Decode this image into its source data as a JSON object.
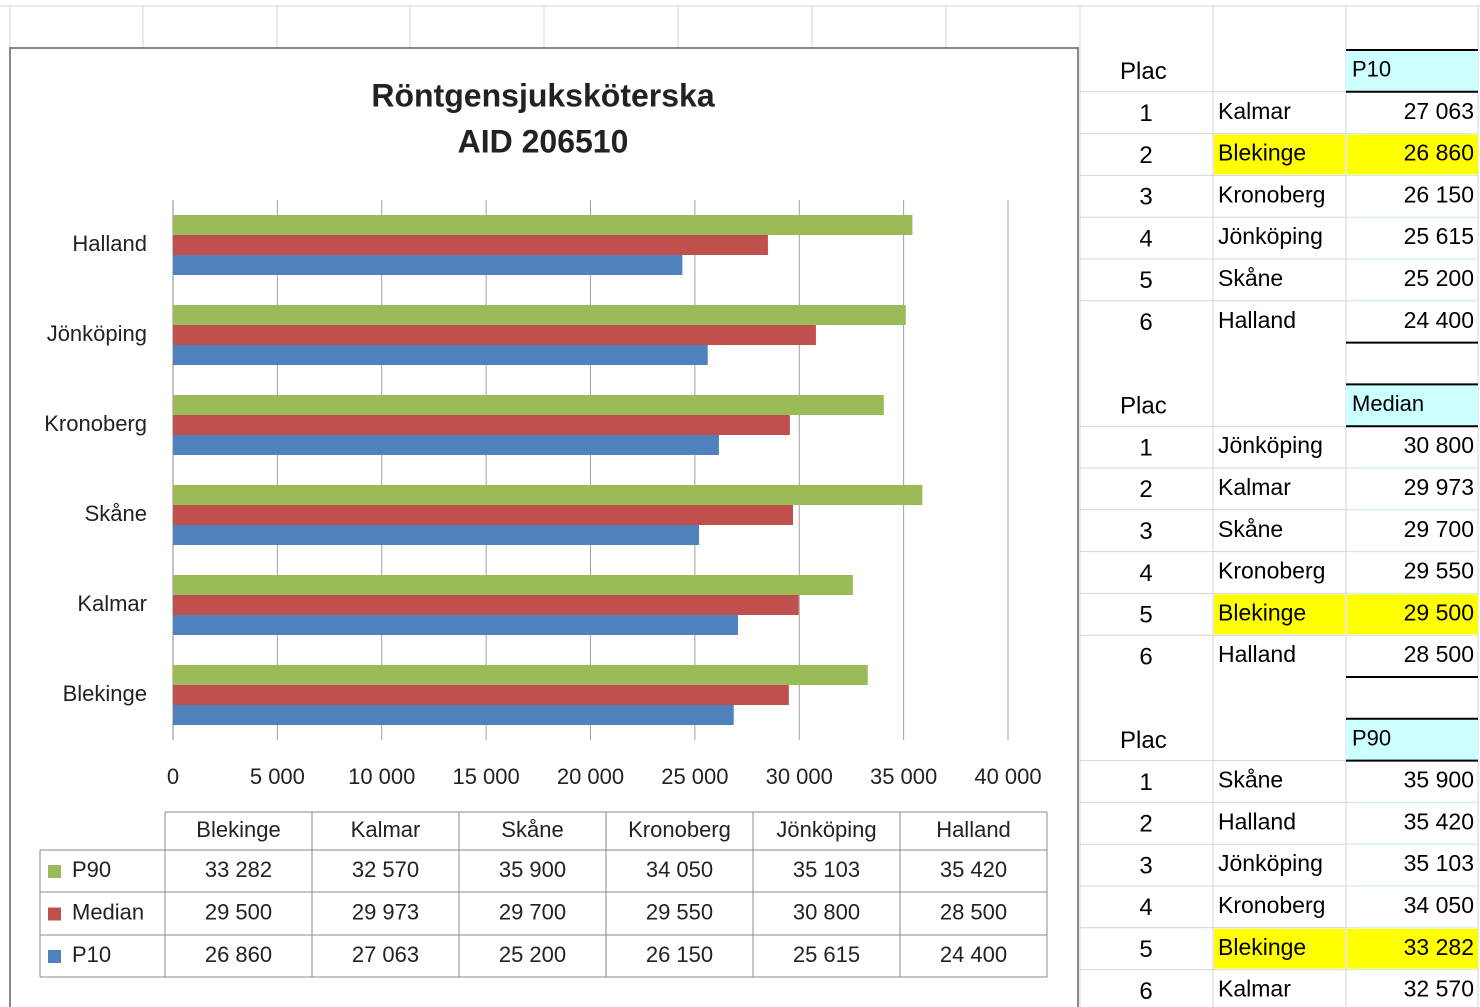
{
  "chart_data": {
    "type": "bar",
    "orientation": "horizontal",
    "title": "Röntgensjuksköterska",
    "subtitle": "AID 206510",
    "categories": [
      "Blekinge",
      "Kalmar",
      "Skåne",
      "Kronoberg",
      "Jönköping",
      "Halland"
    ],
    "series": [
      {
        "name": "P90",
        "color": "#9bbb59",
        "values": [
          33282,
          32570,
          35900,
          34050,
          35103,
          35420
        ],
        "value_labels": [
          "33 282",
          "32 570",
          "35 900",
          "34 050",
          "35 103",
          "35 420"
        ]
      },
      {
        "name": "Median",
        "color": "#c0504d",
        "values": [
          29500,
          29973,
          29700,
          29550,
          30800,
          28500
        ],
        "value_labels": [
          "29 500",
          "29 973",
          "29 700",
          "29 550",
          "30 800",
          "28 500"
        ]
      },
      {
        "name": "P10",
        "color": "#4f81bd",
        "values": [
          26860,
          27063,
          25200,
          26150,
          25615,
          24400
        ],
        "value_labels": [
          "26 860",
          "27 063",
          "25 200",
          "26 150",
          "25 615",
          "24 400"
        ]
      }
    ],
    "xlim": [
      0,
      40000
    ],
    "xticks": [
      0,
      {
        "value": 5000,
        "label": "5 000"
      },
      {
        "value": 10000,
        "label": "10 000"
      },
      {
        "value": 15000,
        "label": "15 000"
      },
      {
        "value": 20000,
        "label": "20 000"
      },
      {
        "value": 25000,
        "label": "25 000"
      },
      {
        "value": 30000,
        "label": "30 000"
      },
      {
        "value": 35000,
        "label": "35 000"
      },
      {
        "value": 40000,
        "label": "40 000"
      }
    ],
    "grid": true,
    "data_table": true
  },
  "rankings": [
    {
      "plac": "Plac",
      "header": "P10",
      "rows": [
        {
          "rank": 1,
          "name": "Kalmar",
          "value": 27063,
          "value_label": "27 063"
        },
        {
          "rank": 2,
          "name": "Blekinge",
          "value": 26860,
          "value_label": "26 860",
          "highlighted": true
        },
        {
          "rank": 3,
          "name": "Kronoberg",
          "value": 26150,
          "value_label": "26 150"
        },
        {
          "rank": 4,
          "name": "Jönköping",
          "value": 25615,
          "value_label": "25 615"
        },
        {
          "rank": 5,
          "name": "Skåne",
          "value": 25200,
          "value_label": "25 200"
        },
        {
          "rank": 6,
          "name": "Halland",
          "value": 24400,
          "value_label": "24 400"
        }
      ]
    },
    {
      "plac": "Plac",
      "header": "Median",
      "rows": [
        {
          "rank": 1,
          "name": "Jönköping",
          "value": 30800,
          "value_label": "30 800"
        },
        {
          "rank": 2,
          "name": "Kalmar",
          "value": 29973,
          "value_label": "29 973"
        },
        {
          "rank": 3,
          "name": "Skåne",
          "value": 29700,
          "value_label": "29 700"
        },
        {
          "rank": 4,
          "name": "Kronoberg",
          "value": 29550,
          "value_label": "29 550"
        },
        {
          "rank": 5,
          "name": "Blekinge",
          "value": 29500,
          "value_label": "29 500",
          "highlighted": true
        },
        {
          "rank": 6,
          "name": "Halland",
          "value": 28500,
          "value_label": "28 500"
        }
      ]
    },
    {
      "plac": "Plac",
      "header": "P90",
      "rows": [
        {
          "rank": 1,
          "name": "Skåne",
          "value": 35900,
          "value_label": "35 900"
        },
        {
          "rank": 2,
          "name": "Halland",
          "value": 35420,
          "value_label": "35 420"
        },
        {
          "rank": 3,
          "name": "Jönköping",
          "value": 35103,
          "value_label": "35 103"
        },
        {
          "rank": 4,
          "name": "Kronoberg",
          "value": 34050,
          "value_label": "34 050"
        },
        {
          "rank": 5,
          "name": "Blekinge",
          "value": 33282,
          "value_label": "33 282",
          "highlighted": true
        },
        {
          "rank": 6,
          "name": "Kalmar",
          "value": 32570,
          "value_label": "32 570"
        }
      ]
    }
  ],
  "highlight_color": "#ffff00",
  "header_color": "#ccffff"
}
